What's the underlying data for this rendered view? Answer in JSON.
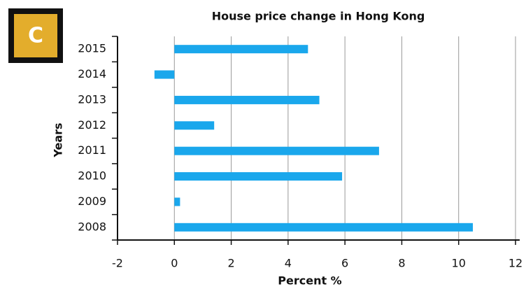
{
  "badge": "C",
  "chart_data": {
    "type": "barh",
    "title": "House price change in Hong Kong",
    "xlabel": "Percent %",
    "ylabel": "Years",
    "categories": [
      "2008",
      "2009",
      "2010",
      "2011",
      "2012",
      "2013",
      "2014",
      "2015"
    ],
    "values": [
      10.5,
      0.2,
      5.9,
      7.2,
      1.4,
      5.1,
      -0.7,
      4.7
    ],
    "color": "#1aa7ec",
    "xlim": [
      -2,
      12
    ],
    "xticks": [
      -2,
      0,
      2,
      4,
      6,
      8,
      10,
      12
    ],
    "grid": true
  }
}
